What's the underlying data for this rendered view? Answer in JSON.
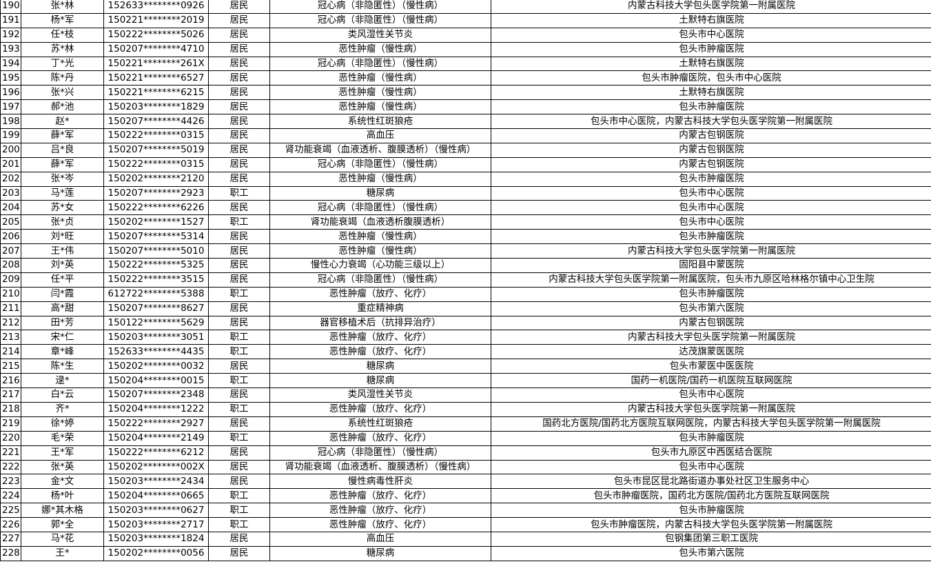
{
  "table": {
    "rows": [
      [
        "190",
        "张*林",
        "152633********0926",
        "居民",
        "冠心病（非隐匿性）（慢性病）",
        "内蒙古科技大学包头医学院第一附属医院"
      ],
      [
        "191",
        "杨*军",
        "150221********2019",
        "居民",
        "冠心病（非隐匿性）（慢性病）",
        "土默特右旗医院"
      ],
      [
        "192",
        "任*枝",
        "150222********5026",
        "居民",
        "类风湿性关节炎",
        "包头市中心医院"
      ],
      [
        "193",
        "苏*林",
        "150207********4710",
        "居民",
        "恶性肿瘤（慢性病）",
        "包头市肿瘤医院"
      ],
      [
        "194",
        "丁*光",
        "150221********261X",
        "居民",
        "冠心病（非隐匿性）（慢性病）",
        "土默特右旗医院"
      ],
      [
        "195",
        "陈*丹",
        "150221********6527",
        "居民",
        "恶性肿瘤（慢性病）",
        "包头市肿瘤医院，包头市中心医院"
      ],
      [
        "196",
        "张*兴",
        "150221********6215",
        "居民",
        "恶性肿瘤（慢性病）",
        "土默特右旗医院"
      ],
      [
        "197",
        "郝*池",
        "150203********1829",
        "居民",
        "恶性肿瘤（慢性病）",
        "包头市肿瘤医院"
      ],
      [
        "198",
        "赵*",
        "150207********4426",
        "居民",
        "系统性红斑狼疮",
        "包头市中心医院，内蒙古科技大学包头医学院第一附属医院"
      ],
      [
        "199",
        "薛*军",
        "150222********0315",
        "居民",
        "高血压",
        "内蒙古包钢医院"
      ],
      [
        "200",
        "吕*良",
        "150207********5019",
        "居民",
        "肾功能衰竭（血液透析、腹膜透析）（慢性病）",
        "内蒙古包钢医院"
      ],
      [
        "201",
        "薛*军",
        "150222********0315",
        "居民",
        "冠心病（非隐匿性）（慢性病）",
        "内蒙古包钢医院"
      ],
      [
        "202",
        "张*岑",
        "150202********2120",
        "居民",
        "恶性肿瘤（慢性病）",
        "包头市肿瘤医院"
      ],
      [
        "203",
        "马*莲",
        "150207********2923",
        "职工",
        "糖尿病",
        "包头市中心医院"
      ],
      [
        "204",
        "苏*女",
        "150222********6226",
        "居民",
        "冠心病（非隐匿性）（慢性病）",
        "包头市中心医院"
      ],
      [
        "205",
        "张*贞",
        "150202********1527",
        "职工",
        "肾功能衰竭（血液透析腹膜透析）",
        "包头市中心医院"
      ],
      [
        "206",
        "刘*旺",
        "150207********5314",
        "居民",
        "恶性肿瘤（慢性病）",
        "包头市肿瘤医院"
      ],
      [
        "207",
        "王*伟",
        "150207********5010",
        "居民",
        "恶性肿瘤（慢性病）",
        "内蒙古科技大学包头医学院第一附属医院"
      ],
      [
        "208",
        "刘*英",
        "150222********5325",
        "居民",
        "慢性心力衰竭（心功能三级以上）",
        "固阳县中蒙医院"
      ],
      [
        "209",
        "任*平",
        "150222********3515",
        "居民",
        "冠心病（非隐匿性）（慢性病）",
        "内蒙古科技大学包头医学院第一附属医院，包头市九原区哈林格尔镇中心卫生院"
      ],
      [
        "210",
        "闫*霞",
        "612722********5388",
        "职工",
        "恶性肿瘤（放疗、化疗）",
        "包头市肿瘤医院"
      ],
      [
        "211",
        "高*甜",
        "150207********8627",
        "居民",
        "重症精神病",
        "包头市第六医院"
      ],
      [
        "212",
        "田*芳",
        "150122********5629",
        "居民",
        "器官移植术后（抗排异治疗）",
        "内蒙古包钢医院"
      ],
      [
        "213",
        "宋*仁",
        "150203********3051",
        "职工",
        "恶性肿瘤（放疗、化疗）",
        "内蒙古科技大学包头医学院第一附属医院"
      ],
      [
        "214",
        "章*峰",
        "152633********4435",
        "职工",
        "恶性肿瘤（放疗、化疗）",
        "达茂旗蒙医医院"
      ],
      [
        "215",
        "陈*生",
        "150202********0032",
        "居民",
        "糖尿病",
        "包头市蒙医中医医院"
      ],
      [
        "216",
        "逯*",
        "150204********0015",
        "职工",
        "糖尿病",
        "国药一机医院/国药一机医院互联网医院"
      ],
      [
        "217",
        "白*云",
        "150207********2348",
        "居民",
        "类风湿性关节炎",
        "包头市中心医院"
      ],
      [
        "218",
        "齐*",
        "150204********1222",
        "职工",
        "恶性肿瘤（放疗、化疗）",
        "内蒙古科技大学包头医学院第一附属医院"
      ],
      [
        "219",
        "徐*婷",
        "150222********2927",
        "居民",
        "系统性红斑狼疮",
        "国药北方医院/国药北方医院互联网医院，内蒙古科技大学包头医学院第一附属医院"
      ],
      [
        "220",
        "毛*荣",
        "150204********2149",
        "职工",
        "恶性肿瘤（放疗、化疗）",
        "包头市肿瘤医院"
      ],
      [
        "221",
        "王*军",
        "150222********6212",
        "居民",
        "冠心病（非隐匿性）（慢性病）",
        "包头市九原区中西医结合医院"
      ],
      [
        "222",
        "张*英",
        "150202********002X",
        "居民",
        "肾功能衰竭（血液透析、腹膜透析）（慢性病）",
        "包头市中心医院"
      ],
      [
        "223",
        "金*文",
        "150203********2434",
        "居民",
        "慢性病毒性肝炎",
        "包头市昆区昆北路街道办事处社区卫生服务中心"
      ],
      [
        "224",
        "杨*叶",
        "150204********0665",
        "职工",
        "恶性肿瘤（放疗、化疗）",
        "包头市肿瘤医院，国药北方医院/国药北方医院互联网医院"
      ],
      [
        "225",
        "娜*其木格",
        "150203********0627",
        "职工",
        "恶性肿瘤（放疗、化疗）",
        "包头市肿瘤医院"
      ],
      [
        "226",
        "郭*全",
        "150203********2717",
        "职工",
        "恶性肿瘤（放疗、化疗）",
        "包头市肿瘤医院，内蒙古科技大学包头医学院第一附属医院"
      ],
      [
        "227",
        "马*花",
        "150203********1824",
        "居民",
        "高血压",
        "包钢集团第三职工医院"
      ],
      [
        "228",
        "王*",
        "150202********0056",
        "居民",
        "糖尿病",
        "包头市第六医院"
      ]
    ]
  }
}
